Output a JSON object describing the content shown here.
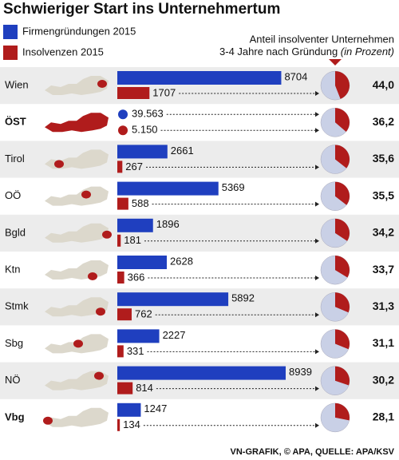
{
  "title": "Schwieriger Start ins Unternehmertum",
  "source": "VN-GRAFIK, © APA, QUELLE: APA/KSV",
  "chart_data": [
    {
      "type": "bar",
      "categories": [
        "Wien",
        "ÖST",
        "Tirol",
        "OÖ",
        "Bgld",
        "Ktn",
        "Stmk",
        "Sbg",
        "NÖ",
        "Vbg"
      ],
      "series": [
        {
          "name": "Firmengründungen 2015",
          "color": "#1f3fbf",
          "values": [
            8704,
            39563,
            2661,
            5369,
            1896,
            2628,
            5892,
            2227,
            8939,
            1247
          ],
          "value_labels": [
            "8704",
            "39.563",
            "2661",
            "5369",
            "1896",
            "2628",
            "5892",
            "2227",
            "8939",
            "1247"
          ]
        },
        {
          "name": "Insolvenzen 2015",
          "color": "#b01c1c",
          "values": [
            1707,
            5150,
            267,
            588,
            181,
            366,
            762,
            331,
            814,
            134
          ],
          "value_labels": [
            "1707",
            "5.150",
            "267",
            "588",
            "181",
            "366",
            "762",
            "331",
            "814",
            "134"
          ]
        }
      ]
    },
    {
      "type": "pie",
      "title": "Anteil insolventer Unternehmen",
      "subtitle": "3-4 Jahre nach Gründung",
      "unit_note": "(in Prozent)",
      "categories": [
        "Wien",
        "ÖST",
        "Tirol",
        "OÖ",
        "Bgld",
        "Ktn",
        "Stmk",
        "Sbg",
        "NÖ",
        "Vbg"
      ],
      "values": [
        44.0,
        36.2,
        35.6,
        35.5,
        34.2,
        33.7,
        31.3,
        31.1,
        30.2,
        28.1
      ],
      "value_labels": [
        "44,0",
        "36,2",
        "35,6",
        "35,5",
        "34,2",
        "33,7",
        "31,3",
        "31,1",
        "30,2",
        "28,1"
      ],
      "color": "#b01c1c",
      "background_color": "#c9d0e6"
    }
  ]
}
